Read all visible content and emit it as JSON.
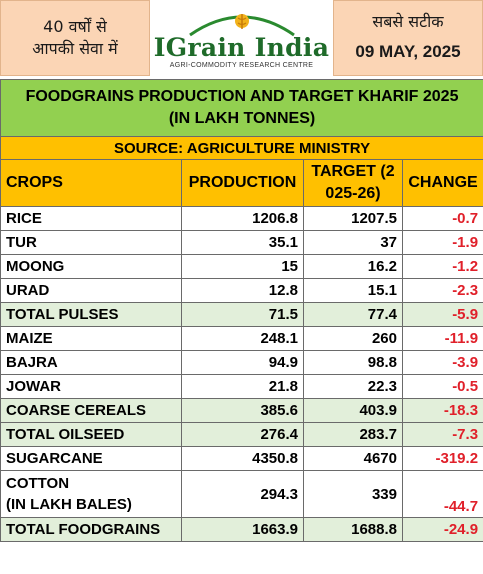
{
  "header": {
    "left_line1": "40 वर्षों से",
    "left_line2": "आपकी सेवा में",
    "logo_name": "IGrain India",
    "logo_tagline": "AGRI-COMMODITY RESEARCH CENTRE",
    "right_tagline": "सबसे सटीक",
    "date": "09 MAY, 2025"
  },
  "colors": {
    "title_bg": "#92d050",
    "header_bg": "#ffc000",
    "peach": "#fbd5b5",
    "negative": "#e0202a",
    "total_bg": "#e2efda"
  },
  "table": {
    "title_line1": "FOODGRAINS PRODUCTION AND TARGET KHARIF 2025",
    "title_line2": "(IN LAKH TONNES)",
    "source": "SOURCE: AGRICULTURE MINISTRY",
    "columns": [
      "CROPS",
      "PRODUCTION",
      "TARGET (2025-26)",
      "CHANGE"
    ],
    "rows": [
      {
        "crop": "RICE",
        "production": "1206.8",
        "target": "1207.5",
        "change": "-0.7"
      },
      {
        "crop": "TUR",
        "production": "35.1",
        "target": "37",
        "change": "-1.9"
      },
      {
        "crop": "MOONG",
        "production": "15",
        "target": "16.2",
        "change": "-1.2"
      },
      {
        "crop": "URAD",
        "production": "12.8",
        "target": "15.1",
        "change": "-2.3"
      },
      {
        "crop": "TOTAL PULSES",
        "production": "71.5",
        "target": "77.4",
        "change": "-5.9"
      },
      {
        "crop": "MAIZE",
        "production": "248.1",
        "target": "260",
        "change": "-11.9"
      },
      {
        "crop": "BAJRA",
        "production": "94.9",
        "target": "98.8",
        "change": "-3.9"
      },
      {
        "crop": "JOWAR",
        "production": "21.8",
        "target": "22.3",
        "change": "-0.5"
      },
      {
        "crop": "COARSE CEREALS",
        "production": "385.6",
        "target": "403.9",
        "change": "-18.3"
      },
      {
        "crop": "TOTAL OILSEED",
        "production": "276.4",
        "target": "283.7",
        "change": "-7.3"
      },
      {
        "crop": "SUGARCANE",
        "production": "4350.8",
        "target": "4670",
        "change": "-319.2"
      },
      {
        "crop": "COTTON",
        "crop_line2": "(IN LAKH BALES)",
        "production": "294.3",
        "target": "339",
        "change": "-44.7"
      },
      {
        "crop": "TOTAL FOODGRAINS",
        "production": "1663.9",
        "target": "1688.8",
        "change": "-24.9"
      }
    ]
  }
}
